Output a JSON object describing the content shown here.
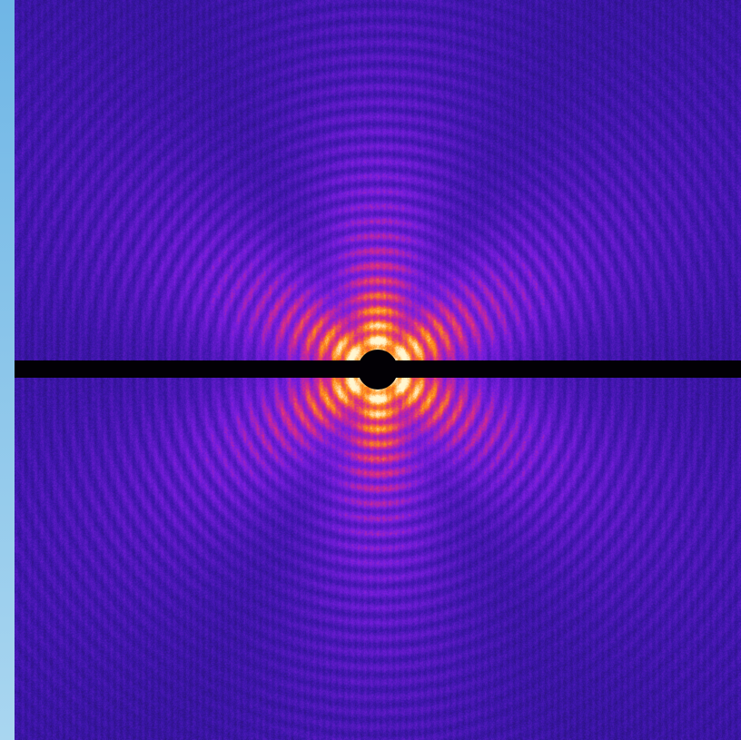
{
  "image": {
    "subject": "",
    "colormap": {
      "background": "#1c0f5a",
      "low": "#3a16a8",
      "mid": "#7a1ee0",
      "high": "#d82a8a",
      "hot": "#ff8a10",
      "peak": "#fff6d0"
    },
    "beamstop_color": "#020005",
    "left_strip_color": "#8cc6ea"
  }
}
